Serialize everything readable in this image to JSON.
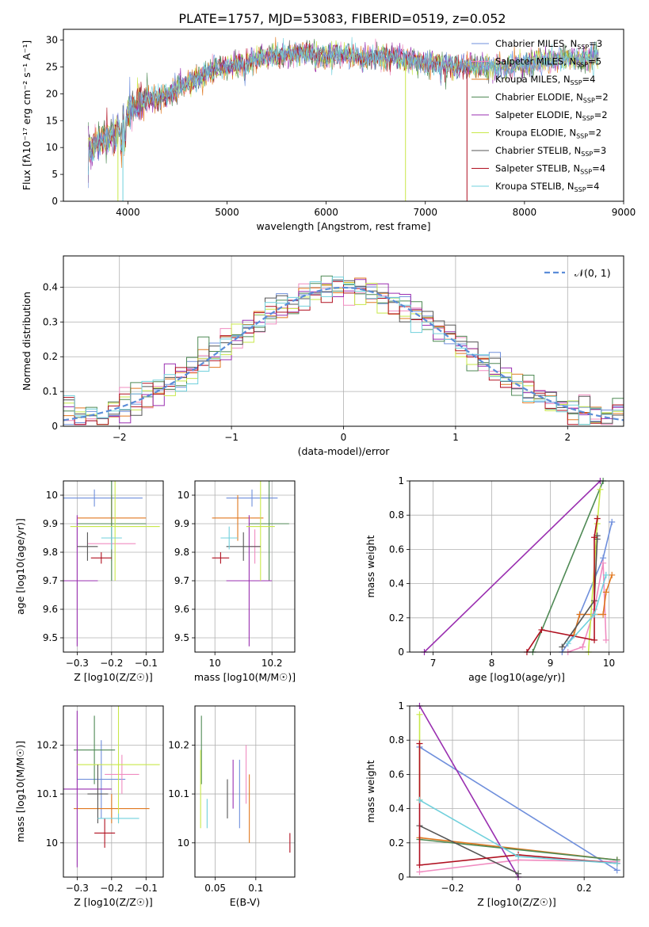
{
  "figure_title": "PLATE=1757, MJD=53083, FIBERID=0519, z=0.052",
  "colors": {
    "chabrier_miles": "#6f8fdc",
    "salpeter_miles": "#f08cc0",
    "kroupa_miles": "#e07820",
    "chabrier_elodie": "#4f8a55",
    "salpeter_elodie": "#9a2fb0",
    "kroupa_elodie": "#c8e84a",
    "chabrier_stelib": "#555555",
    "salpeter_stelib": "#b01020",
    "kroupa_stelib": "#70d0dc",
    "normal_curve": "#5b8dd8",
    "grid": "#b0b0b0"
  },
  "chart_data": [
    {
      "type": "line",
      "panel": "spectrum",
      "xlabel": "wavelength [Angstrom, rest frame]",
      "ylabel": "Flux [fλ10⁻¹⁷ erg cm⁻² s⁻¹ A⁻¹]",
      "xlim": [
        3350,
        9000
      ],
      "ylim": [
        0,
        32
      ],
      "xticks": [
        4000,
        5000,
        6000,
        7000,
        8000,
        9000
      ],
      "yticks": [
        0,
        5,
        10,
        15,
        20,
        25,
        30
      ],
      "grid": false,
      "legend_position": "right",
      "legend": [
        "Chabrier MILES, N_SSP=3",
        "Salpeter MILES, N_SSP=5",
        "Kroupa MILES, N_SSP=4",
        "Chabrier ELODIE, N_SSP=2",
        "Salpeter ELODIE, N_SSP=2",
        "Kroupa ELODIE, N_SSP=2",
        "Chabrier STELIB, N_SSP=3",
        "Salpeter STELIB, N_SSP=4",
        "Kroupa STELIB, N_SSP=4"
      ],
      "continuum": {
        "x": [
          3600,
          3700,
          3800,
          3900,
          4000,
          4200,
          4400,
          4600,
          4800,
          5000,
          5200,
          5400,
          5600,
          5800,
          6000,
          6200,
          6400,
          6600,
          6800,
          7000,
          7200,
          7400,
          7600,
          7800,
          8000,
          8200,
          8400,
          8600,
          8750
        ],
        "y": [
          9,
          11,
          12,
          13,
          17,
          19,
          19.5,
          22,
          24,
          25,
          26,
          27,
          27.5,
          27.5,
          27,
          27.5,
          26.5,
          27,
          26.5,
          25.5,
          25.5,
          25,
          25,
          25,
          25.5,
          26,
          26.5,
          26.5,
          27
        ]
      },
      "truncations": [
        {
          "series": "Kroupa ELODIE",
          "x": 3900
        },
        {
          "series": "Kroupa STELIB",
          "x": 3950
        },
        {
          "series": "Kroupa ELODIE",
          "x": 6800
        },
        {
          "series": "Salpeter STELIB",
          "x": 7420
        }
      ]
    },
    {
      "type": "line",
      "panel": "residual_histogram",
      "xlabel": "(data-model)/error",
      "ylabel": "Normed distribution",
      "xlim": [
        -2.5,
        2.5
      ],
      "ylim": [
        0,
        0.49
      ],
      "xticks": [
        -2,
        -1,
        0,
        1,
        2
      ],
      "yticks": [
        0.0,
        0.1,
        0.2,
        0.3,
        0.4
      ],
      "grid": true,
      "legend": [
        "𝒩(0, 1)"
      ],
      "legend_position": "top-right",
      "bin_width": 0.1,
      "bin_start": -2.5
    },
    {
      "type": "scatter",
      "panel": "age_vs_Z",
      "xlabel": "Z [log10(Z/Z☉)]",
      "ylabel": "age  [log10(age/yr)]",
      "xlim": [
        -0.34,
        -0.05
      ],
      "ylim": [
        9.45,
        10.05
      ],
      "xticks": [
        -0.3,
        -0.2,
        -0.1
      ],
      "yticks": [
        9.5,
        9.6,
        9.7,
        9.8,
        9.9,
        10.0
      ],
      "grid": true,
      "points": [
        {
          "series": "Chabrier MILES",
          "x": -0.25,
          "y": 9.99,
          "xerr": 0.14,
          "yerr": 0.03
        },
        {
          "series": "Salpeter MILES",
          "x": -0.2,
          "y": 9.83,
          "xerr": 0.07,
          "yerr": 0.06
        },
        {
          "series": "Kroupa MILES",
          "x": -0.2,
          "y": 9.92,
          "xerr": 0.1,
          "yerr": 0.08
        },
        {
          "series": "Chabrier ELODIE",
          "x": -0.2,
          "y": 9.9,
          "xerr": 0.1,
          "yerr": 0.2
        },
        {
          "series": "Salpeter ELODIE",
          "x": -0.3,
          "y": 9.7,
          "xerr": 0.06,
          "yerr": 0.23
        },
        {
          "series": "Kroupa ELODIE",
          "x": -0.19,
          "y": 9.89,
          "xerr": 0.13,
          "yerr": 0.19
        },
        {
          "series": "Chabrier STELIB",
          "x": -0.27,
          "y": 9.82,
          "xerr": 0.03,
          "yerr": 0.05
        },
        {
          "series": "Salpeter STELIB",
          "x": -0.23,
          "y": 9.78,
          "xerr": 0.03,
          "yerr": 0.02
        },
        {
          "series": "Kroupa STELIB",
          "x": -0.2,
          "y": 9.85,
          "xerr": 0.03,
          "yerr": 0.04
        }
      ]
    },
    {
      "type": "scatter",
      "panel": "age_vs_mass",
      "xlabel": "mass [log10(M/M☉)]",
      "ylabel": "",
      "xlim": [
        9.93,
        10.28
      ],
      "ylim": [
        9.45,
        10.05
      ],
      "xticks": [
        10.0,
        10.2
      ],
      "yticks": [
        9.5,
        9.6,
        9.7,
        9.8,
        9.9,
        10.0
      ],
      "grid": true,
      "points": [
        {
          "series": "Chabrier MILES",
          "x": 10.13,
          "y": 9.99,
          "xerr": 0.09,
          "yerr": 0.03
        },
        {
          "series": "Salpeter MILES",
          "x": 10.14,
          "y": 9.82,
          "xerr": 0.02,
          "yerr": 0.06
        },
        {
          "series": "Kroupa MILES",
          "x": 10.08,
          "y": 9.92,
          "xerr": 0.09,
          "yerr": 0.08
        },
        {
          "series": "Chabrier ELODIE",
          "x": 10.19,
          "y": 9.9,
          "xerr": 0.07,
          "yerr": 0.2
        },
        {
          "series": "Salpeter ELODIE",
          "x": 10.12,
          "y": 9.7,
          "xerr": 0.08,
          "yerr": 0.23
        },
        {
          "series": "Kroupa ELODIE",
          "x": 10.16,
          "y": 9.89,
          "xerr": 0.05,
          "yerr": 0.19
        },
        {
          "series": "Chabrier STELIB",
          "x": 10.1,
          "y": 9.82,
          "xerr": 0.06,
          "yerr": 0.05
        },
        {
          "series": "Salpeter STELIB",
          "x": 10.02,
          "y": 9.78,
          "xerr": 0.03,
          "yerr": 0.02
        },
        {
          "series": "Kroupa STELIB",
          "x": 10.05,
          "y": 9.85,
          "xerr": 0.03,
          "yerr": 0.04
        }
      ]
    },
    {
      "type": "line",
      "panel": "cumulative_mass_weight_vs_age",
      "xlabel": "age  [log10(age/yr)]",
      "ylabel": "mass weight",
      "xlim": [
        6.6,
        10.25
      ],
      "ylim": [
        0,
        1.0
      ],
      "xticks": [
        7,
        8,
        9,
        10
      ],
      "yticks": [
        0.0,
        0.2,
        0.4,
        0.6,
        0.8,
        1.0
      ],
      "grid": true,
      "series": [
        {
          "name": "Chabrier MILES",
          "x": [
            9.2,
            9.4,
            9.5,
            9.9,
            10.05
          ],
          "y": [
            0.0,
            0.1,
            0.22,
            0.55,
            0.76
          ]
        },
        {
          "name": "Salpeter MILES",
          "x": [
            9.3,
            9.55,
            9.75,
            9.9,
            9.95
          ],
          "y": [
            0.0,
            0.03,
            0.25,
            0.52,
            0.07
          ]
        },
        {
          "name": "Kroupa MILES",
          "x": [
            9.4,
            9.5,
            9.9,
            9.95,
            10.05
          ],
          "y": [
            0.1,
            0.22,
            0.22,
            0.35,
            0.45
          ]
        },
        {
          "name": "Chabrier ELODIE",
          "x": [
            8.7,
            9.9
          ],
          "y": [
            0.0,
            1.0
          ]
        },
        {
          "name": "Salpeter ELODIE",
          "x": [
            6.85,
            9.85
          ],
          "y": [
            0.0,
            1.0
          ]
        },
        {
          "name": "Kroupa ELODIE",
          "x": [
            9.65,
            9.8,
            9.85
          ],
          "y": [
            0.0,
            0.75,
            0.95
          ]
        },
        {
          "name": "Chabrier STELIB",
          "x": [
            9.2,
            9.75,
            9.8,
            9.8
          ],
          "y": [
            0.03,
            0.3,
            0.66,
            0.68
          ]
        },
        {
          "name": "Salpeter STELIB",
          "x": [
            8.6,
            8.85,
            9.75,
            9.75,
            9.8
          ],
          "y": [
            0.0,
            0.13,
            0.07,
            0.67,
            0.78
          ]
        },
        {
          "name": "Kroupa STELIB",
          "x": [
            9.3,
            9.75,
            9.95
          ],
          "y": [
            0.05,
            0.22,
            0.45
          ]
        }
      ]
    },
    {
      "type": "scatter",
      "panel": "mass_vs_Z",
      "xlabel": "Z [log10(Z/Z☉)]",
      "ylabel": "mass [log10(M/M☉)]",
      "xlim": [
        -0.34,
        -0.05
      ],
      "ylim": [
        9.93,
        10.28
      ],
      "xticks": [
        -0.3,
        -0.2,
        -0.1
      ],
      "yticks": [
        10.0,
        10.1,
        10.2
      ],
      "grid": true,
      "points": [
        {
          "series": "Chabrier MILES",
          "x": -0.23,
          "y": 10.13,
          "xerr": 0.07,
          "yerr": 0.08
        },
        {
          "series": "Salpeter MILES",
          "x": -0.17,
          "y": 10.14,
          "xerr": 0.05,
          "yerr": 0.04
        },
        {
          "series": "Kroupa MILES",
          "x": -0.2,
          "y": 10.07,
          "xerr": 0.11,
          "yerr": 0.03
        },
        {
          "series": "Chabrier ELODIE",
          "x": -0.25,
          "y": 10.19,
          "xerr": 0.06,
          "yerr": 0.07
        },
        {
          "series": "Salpeter ELODIE",
          "x": -0.3,
          "y": 10.11,
          "xerr": 0.1,
          "yerr": 0.16
        },
        {
          "series": "Kroupa ELODIE",
          "x": -0.18,
          "y": 10.16,
          "xerr": 0.12,
          "yerr": 0.12
        },
        {
          "series": "Chabrier STELIB",
          "x": -0.24,
          "y": 10.1,
          "xerr": 0.03,
          "yerr": 0.06
        },
        {
          "series": "Salpeter STELIB",
          "x": -0.22,
          "y": 10.02,
          "xerr": 0.03,
          "yerr": 0.03
        },
        {
          "series": "Kroupa STELIB",
          "x": -0.18,
          "y": 10.05,
          "xerr": 0.06,
          "yerr": 0.01
        }
      ]
    },
    {
      "type": "scatter",
      "panel": "mass_vs_EBV",
      "xlabel": "E(B-V)",
      "ylabel": "",
      "xlim": [
        0.025,
        0.148
      ],
      "ylim": [
        9.93,
        10.28
      ],
      "xticks": [
        0.05,
        0.1
      ],
      "yticks": [
        10.0,
        10.1,
        10.2
      ],
      "grid": true,
      "points": [
        {
          "series": "Chabrier MILES",
          "x": 0.08,
          "y": 10.1,
          "yerr": 0.07
        },
        {
          "series": "Salpeter MILES",
          "x": 0.088,
          "y": 10.14,
          "yerr": 0.06
        },
        {
          "series": "Kroupa MILES",
          "x": 0.092,
          "y": 10.07,
          "yerr": 0.07
        },
        {
          "series": "Chabrier ELODIE",
          "x": 0.033,
          "y": 10.19,
          "yerr": 0.07
        },
        {
          "series": "Salpeter ELODIE",
          "x": 0.072,
          "y": 10.12,
          "yerr": 0.05
        },
        {
          "series": "Kroupa ELODIE",
          "x": 0.032,
          "y": 10.11,
          "yerr": 0.08
        },
        {
          "series": "Chabrier STELIB",
          "x": 0.065,
          "y": 10.09,
          "yerr": 0.04
        },
        {
          "series": "Salpeter STELIB",
          "x": 0.142,
          "y": 10.0,
          "yerr": 0.02
        },
        {
          "series": "Kroupa STELIB",
          "x": 0.04,
          "y": 10.06,
          "yerr": 0.03
        }
      ]
    },
    {
      "type": "line",
      "panel": "cumulative_mass_weight_vs_Z",
      "xlabel": "Z [log10(Z/Z☉)]",
      "ylabel": "mass weight",
      "xlim": [
        -0.33,
        0.32
      ],
      "ylim": [
        0,
        1.0
      ],
      "xticks": [
        -0.2,
        0.0,
        0.2
      ],
      "yticks": [
        0.0,
        0.2,
        0.4,
        0.6,
        0.8,
        1.0
      ],
      "grid": true,
      "series": [
        {
          "name": "Chabrier MILES",
          "x": [
            -0.3,
            0.3
          ],
          "y": [
            0.76,
            0.04
          ]
        },
        {
          "name": "Salpeter MILES",
          "x": [
            -0.3,
            0.0,
            0.3
          ],
          "y": [
            0.03,
            0.1,
            0.09
          ]
        },
        {
          "name": "Kroupa MILES",
          "x": [
            -0.3,
            0.3
          ],
          "y": [
            0.23,
            0.1
          ]
        },
        {
          "name": "Chabrier ELODIE",
          "x": [
            -0.3,
            0.3
          ],
          "y": [
            0.22,
            0.1
          ]
        },
        {
          "name": "Salpeter ELODIE",
          "x": [
            -0.3,
            0.0
          ],
          "y": [
            1.0,
            0.0
          ]
        },
        {
          "name": "Kroupa ELODIE",
          "x": [
            -0.3,
            -0.3
          ],
          "y": [
            0.45,
            0.95
          ]
        },
        {
          "name": "Chabrier STELIB",
          "x": [
            -0.3,
            0.0
          ],
          "y": [
            0.3,
            0.02
          ]
        },
        {
          "name": "Salpeter STELIB",
          "x": [
            -0.3,
            -0.3,
            0.0,
            0.3
          ],
          "y": [
            0.78,
            0.07,
            0.13,
            0.08
          ]
        },
        {
          "name": "Kroupa STELIB",
          "x": [
            -0.3,
            0.0,
            0.3
          ],
          "y": [
            0.45,
            0.12,
            0.08
          ]
        }
      ]
    }
  ]
}
